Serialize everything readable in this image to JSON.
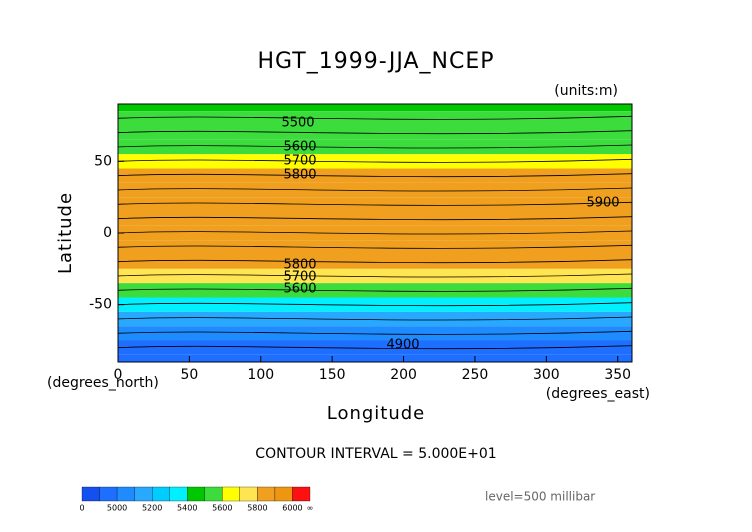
{
  "chart_data": {
    "type": "contour",
    "title": "HGT_1999-JJA_NCEP",
    "units_label": "(units:m)",
    "x_label": "Longitude",
    "y_label": "Latitude",
    "x_unit_label": "(degrees_east)",
    "y_unit_label": "(degrees_north)",
    "xlim": [
      0,
      360
    ],
    "ylim": [
      -90,
      90
    ],
    "xticks": [
      0,
      50,
      100,
      150,
      200,
      250,
      300,
      350
    ],
    "yticks": [
      -50,
      0,
      50
    ],
    "profile": {
      "lat": [
        90,
        80,
        70,
        60,
        50,
        40,
        30,
        20,
        10,
        0,
        -10,
        -20,
        -30,
        -40,
        -50,
        -60,
        -70,
        -80,
        -90
      ],
      "hgt": [
        5480,
        5500,
        5540,
        5590,
        5690,
        5820,
        5870,
        5880,
        5870,
        5860,
        5850,
        5830,
        5700,
        5540,
        5350,
        5150,
        5000,
        4950,
        4960
      ]
    },
    "contour_labels": [
      5500,
      5600,
      5700,
      5800,
      5900,
      5800,
      5700,
      5600,
      4900
    ],
    "contour_interval_label": "CONTOUR INTERVAL = 5.000E+01",
    "level_label": "level=500 millibar",
    "colorbar": {
      "levels": [
        0,
        4900,
        5000,
        5100,
        5200,
        5300,
        5400,
        5500,
        5600,
        5700,
        5800,
        5900,
        6000
      ],
      "colors": [
        "#1450f0",
        "#1e6eff",
        "#1e8cff",
        "#28a8ff",
        "#00ccff",
        "#00f0ff",
        "#00c800",
        "#3cdc3c",
        "#ffff00",
        "#ffe650",
        "#f0a01e",
        "#ee9610",
        "#ff1010"
      ],
      "ticks": [
        0,
        5000,
        5200,
        5400,
        5600,
        5800,
        6000
      ],
      "end_label": "∞"
    }
  }
}
